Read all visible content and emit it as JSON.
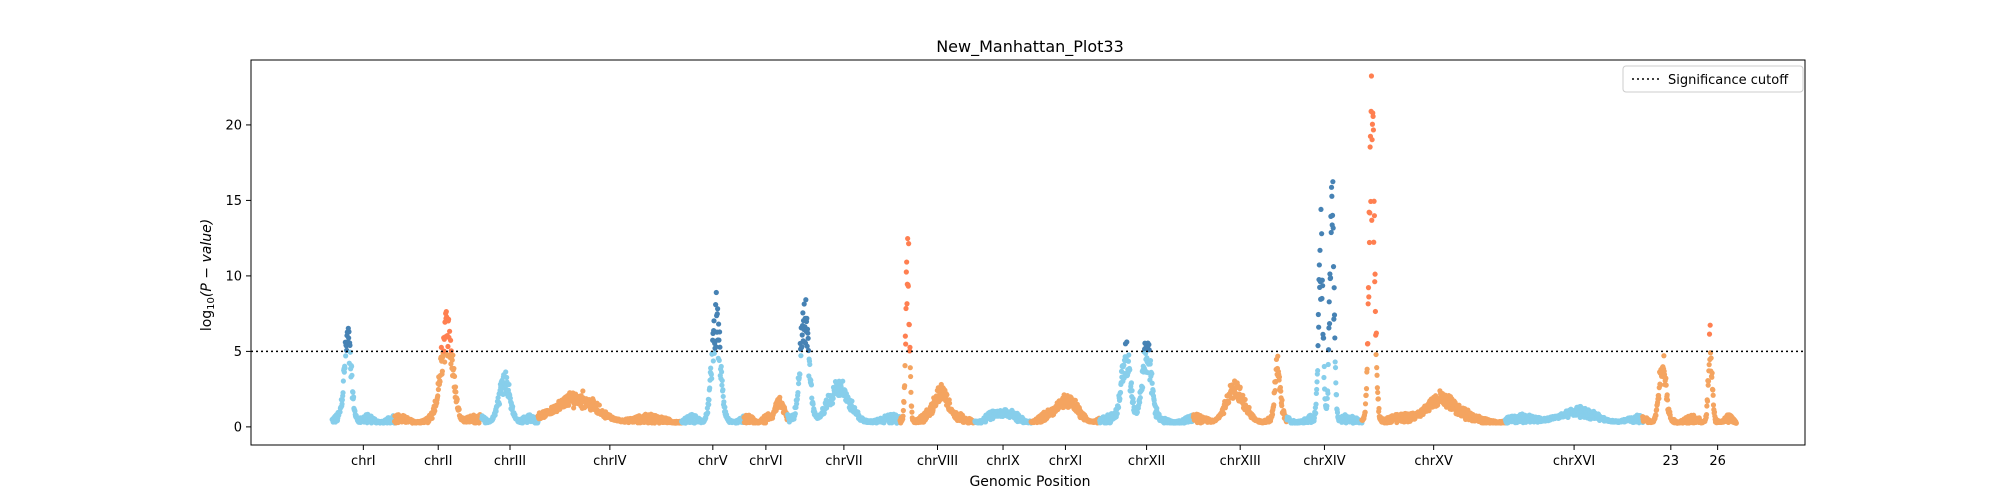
{
  "chart_data": {
    "type": "scatter",
    "title": "New_Manhattan_Plot33",
    "xlabel": "Genomic Position",
    "ylabel_prefix": "log",
    "ylabel_sub": "10",
    "ylabel_suffix": "(P − value)",
    "ylim": [
      -1.2,
      24.3
    ],
    "yticks": [
      0,
      5,
      10,
      15,
      20
    ],
    "grid": false,
    "legend": {
      "placement": "top-right",
      "entries": [
        "Significance cutoff"
      ]
    },
    "significance_cutoff": 5,
    "colors": {
      "light_blue": "#87ceeb",
      "sandy": "#f4a460",
      "steel_blue": "#4682b4",
      "coral": "#ff7f50"
    },
    "chromosomes": [
      {
        "label": "chrI",
        "start": 0.0,
        "end": 1.0,
        "base": "light_blue",
        "peaks": [
          {
            "pos": 0.25,
            "h": 6.6,
            "w": 0.12
          }
        ]
      },
      {
        "label": "chrII",
        "start": 1.0,
        "end": 2.4,
        "base": "sandy",
        "peaks": [
          {
            "pos": 0.6,
            "h": 7.6,
            "w": 0.14
          }
        ]
      },
      {
        "label": "chrIII",
        "start": 2.4,
        "end": 3.3,
        "base": "light_blue",
        "peaks": [
          {
            "pos": 0.4,
            "h": 3.2,
            "w": 0.2
          }
        ]
      },
      {
        "label": "chrIV",
        "start": 3.3,
        "end": 5.6,
        "base": "sandy",
        "peaks": [
          {
            "pos": 0.25,
            "h": 1.8,
            "w": 0.3
          }
        ]
      },
      {
        "label": "chrV",
        "start": 5.6,
        "end": 6.6,
        "base": "light_blue",
        "peaks": [
          {
            "pos": 0.55,
            "h": 8.2,
            "w": 0.14
          }
        ]
      },
      {
        "label": "chrVI",
        "start": 6.6,
        "end": 7.3,
        "base": "sandy",
        "peaks": [
          {
            "pos": 0.8,
            "h": 1.6,
            "w": 0.2
          }
        ]
      },
      {
        "label": "chrVII",
        "start": 7.3,
        "end": 9.1,
        "base": "light_blue",
        "peaks": [
          {
            "pos": 0.15,
            "h": 8.6,
            "w": 0.08
          },
          {
            "pos": 0.45,
            "h": 2.5,
            "w": 0.2
          }
        ]
      },
      {
        "label": "chrVIII",
        "start": 9.1,
        "end": 10.3,
        "base": "sandy",
        "peaks": [
          {
            "pos": 0.1,
            "h": 14.3,
            "w": 0.05
          },
          {
            "pos": 0.55,
            "h": 2.5,
            "w": 0.2
          }
        ]
      },
      {
        "label": "chrIX",
        "start": 10.3,
        "end": 11.2,
        "base": "light_blue",
        "peaks": [
          {
            "pos": 0.5,
            "h": 0.8,
            "w": 0.3
          }
        ]
      },
      {
        "label": "chrXI",
        "start": 11.2,
        "end": 12.3,
        "base": "sandy",
        "peaks": [
          {
            "pos": 0.5,
            "h": 1.8,
            "w": 0.3
          }
        ]
      },
      {
        "label": "chrXII",
        "start": 12.3,
        "end": 13.8,
        "base": "light_blue",
        "peaks": [
          {
            "pos": 0.28,
            "h": 5.5,
            "w": 0.1
          },
          {
            "pos": 0.5,
            "h": 5.8,
            "w": 0.1
          }
        ]
      },
      {
        "label": "chrXIII",
        "start": 13.8,
        "end": 15.3,
        "base": "sandy",
        "peaks": [
          {
            "pos": 0.45,
            "h": 2.5,
            "w": 0.2
          },
          {
            "pos": 0.9,
            "h": 4.5,
            "w": 0.06
          }
        ]
      },
      {
        "label": "chrXIV",
        "start": 15.3,
        "end": 16.5,
        "base": "light_blue",
        "peaks": [
          {
            "pos": 0.45,
            "h": 14.3,
            "w": 0.06
          },
          {
            "pos": 0.6,
            "h": 18.3,
            "w": 0.06
          }
        ]
      },
      {
        "label": "chrXV",
        "start": 16.5,
        "end": 18.8,
        "base": "sandy",
        "peaks": [
          {
            "pos": 0.07,
            "h": 23.5,
            "w": 0.04
          },
          {
            "pos": 0.55,
            "h": 2.0,
            "w": 0.2
          }
        ]
      },
      {
        "label": "chrXVI",
        "start": 18.8,
        "end": 21.0,
        "base": "light_blue",
        "peaks": [
          {
            "pos": 0.5,
            "h": 0.6,
            "w": 0.3
          }
        ]
      },
      {
        "label": "23",
        "start": 21.0,
        "end": 21.9,
        "base": "sandy",
        "peaks": [
          {
            "pos": 0.35,
            "h": 5.0,
            "w": 0.12
          }
        ]
      },
      {
        "label": "26",
        "start": 21.9,
        "end": 22.5,
        "base": "sandy",
        "peaks": [
          {
            "pos": 0.3,
            "h": 6.6,
            "w": 0.1
          }
        ]
      }
    ]
  }
}
